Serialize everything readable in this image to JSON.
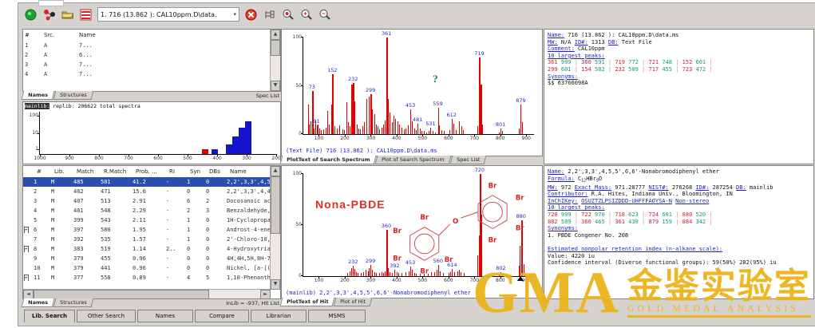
{
  "toolbar": {
    "icons": [
      "green-go-icon",
      "molecule-icon",
      "open-folder-icon",
      "structures-icon"
    ],
    "spectrum_selector": "1. 716 (13.862 ): CAL10ppm.D\\data.",
    "right_icons": [
      "delete-spectrum-icon",
      "tree-view-icon",
      "library-search-icon",
      "zoom-in-icon",
      "zoom-out-icon"
    ]
  },
  "spec_list": {
    "columns": [
      "#",
      "Src.",
      "Name"
    ],
    "rows": [
      [
        "1",
        "A",
        "7..."
      ],
      [
        "2",
        "A",
        "6..."
      ],
      [
        "3",
        "A",
        "7..."
      ],
      [
        "4",
        "A",
        "7..."
      ]
    ],
    "tabs": [
      "Names",
      "Structures"
    ],
    "corner_label": "Spec List"
  },
  "histogram": {
    "title_hl": "mainlib:",
    "title_rest": " replib:  206622 total spectra",
    "yticks": [
      "100",
      "10",
      "1"
    ],
    "xticks": [
      1000,
      900,
      800,
      700,
      600,
      500,
      400,
      300,
      200
    ],
    "xmin": 1000,
    "xmax": 200,
    "bars": [
      {
        "x": 440,
        "h": 12,
        "c": "#e00000"
      },
      {
        "x": 408,
        "h": 11,
        "c": "#1414cc"
      },
      {
        "x": 360,
        "h": 22,
        "c": "#1414cc"
      },
      {
        "x": 338,
        "h": 42,
        "c": "#1414cc"
      },
      {
        "x": 316,
        "h": 63,
        "c": "#1414cc"
      },
      {
        "x": 294,
        "h": 78,
        "c": "#1414cc"
      }
    ]
  },
  "search_spectrum": {
    "xmin": 40,
    "xmax": 930,
    "xticks": [
      100,
      200,
      300,
      400,
      500,
      600,
      700,
      800,
      900
    ],
    "yticks": [
      0,
      50,
      100
    ],
    "query_mark": "?",
    "peaks": [
      [
        59,
        31
      ],
      [
        63,
        10
      ],
      [
        69,
        13
      ],
      [
        73,
        45,
        1
      ],
      [
        77,
        8
      ],
      [
        81,
        6
      ],
      [
        85,
        14
      ],
      [
        91,
        9,
        1
      ],
      [
        95,
        10
      ],
      [
        103,
        6
      ],
      [
        109,
        4
      ],
      [
        117,
        5
      ],
      [
        127,
        7
      ],
      [
        133,
        24
      ],
      [
        140,
        10
      ],
      [
        147,
        31
      ],
      [
        152,
        62,
        1
      ],
      [
        155,
        21
      ],
      [
        160,
        8
      ],
      [
        170,
        6
      ],
      [
        178,
        9
      ],
      [
        191,
        5
      ],
      [
        198,
        4
      ],
      [
        207,
        33
      ],
      [
        213,
        12
      ],
      [
        219,
        8
      ],
      [
        226,
        51
      ],
      [
        232,
        53,
        1
      ],
      [
        238,
        34
      ],
      [
        245,
        10
      ],
      [
        253,
        6
      ],
      [
        260,
        5
      ],
      [
        268,
        8
      ],
      [
        275,
        12
      ],
      [
        283,
        36
      ],
      [
        291,
        39
      ],
      [
        299,
        41,
        1
      ],
      [
        305,
        26
      ],
      [
        313,
        21
      ],
      [
        320,
        10
      ],
      [
        327,
        8
      ],
      [
        334,
        5
      ],
      [
        341,
        7
      ],
      [
        348,
        10
      ],
      [
        355,
        14
      ],
      [
        361,
        100,
        1
      ],
      [
        367,
        36
      ],
      [
        373,
        22
      ],
      [
        381,
        12
      ],
      [
        389,
        19
      ],
      [
        395,
        16
      ],
      [
        403,
        13
      ],
      [
        411,
        10
      ],
      [
        419,
        7
      ],
      [
        427,
        5
      ],
      [
        435,
        6
      ],
      [
        443,
        9
      ],
      [
        453,
        26,
        1
      ],
      [
        459,
        13
      ],
      [
        467,
        6
      ],
      [
        475,
        4
      ],
      [
        481,
        11,
        1
      ],
      [
        489,
        6
      ],
      [
        497,
        3
      ],
      [
        505,
        3
      ],
      [
        515,
        2
      ],
      [
        523,
        3
      ],
      [
        531,
        7,
        1
      ],
      [
        539,
        3
      ],
      [
        547,
        2
      ],
      [
        559,
        27,
        1
      ],
      [
        565,
        9
      ],
      [
        573,
        4
      ],
      [
        583,
        3
      ],
      [
        605,
        4
      ],
      [
        612,
        16,
        1
      ],
      [
        618,
        11
      ],
      [
        627,
        4
      ],
      [
        641,
        13
      ],
      [
        649,
        8
      ],
      [
        657,
        4
      ],
      [
        712,
        8
      ],
      [
        719,
        79,
        1
      ],
      [
        723,
        51
      ],
      [
        731,
        10
      ],
      [
        793,
        2
      ],
      [
        801,
        6,
        1
      ],
      [
        807,
        3
      ],
      [
        871,
        6
      ],
      [
        879,
        31,
        1
      ],
      [
        885,
        12
      ]
    ],
    "caption": "(Text File) 716 (13.862 ): CAL10ppm.D\\data.ms",
    "tabs": [
      "PlotText of Search Spectrum",
      "Plot of Search Spectrum",
      "Spec List"
    ]
  },
  "search_info": {
    "lines_top": [
      [
        [
          "lk",
          "Name:"
        ],
        [
          "tx",
          " 716 (13.862 ): CAL10ppm.D\\data.ms"
        ]
      ],
      [
        [
          "lk",
          "MW:"
        ],
        [
          "tx",
          " N/A "
        ],
        [
          "lk",
          "ID#:"
        ],
        [
          "tx",
          " 1313 "
        ],
        [
          "lk",
          "DB:"
        ],
        [
          "tx",
          " Text File"
        ]
      ],
      [
        [
          "lk",
          "Comment:"
        ],
        [
          "tx",
          " CAL10ppm"
        ]
      ],
      [
        [
          "lk",
          "10 largest peaks:"
        ]
      ]
    ],
    "largest_peaks": [
      [
        "361",
        "999"
      ],
      [
        "360",
        "591"
      ],
      [
        "719",
        "772"
      ],
      [
        "721",
        "748"
      ],
      [
        "152",
        "601"
      ],
      [
        "299",
        "601"
      ],
      [
        "154",
        "582"
      ],
      [
        "232",
        "509"
      ],
      [
        "717",
        "455"
      ],
      [
        "723",
        "472"
      ]
    ],
    "lines_bottom": [
      [
        [
          "lk",
          "Synonyms:"
        ]
      ],
      [
        [
          "tx",
          "$$ 63766098A"
        ]
      ]
    ]
  },
  "hit_list": {
    "columns": [
      "#",
      "Lib.",
      "Match",
      "R.Match",
      "Prob. ...",
      "RI",
      "Syn",
      "DBs",
      "Name"
    ],
    "rows": [
      {
        "num": "1",
        "lib": "M",
        "match": "485",
        "rmatch": "501",
        "prob": "41.2",
        "ri": "-",
        "syn": "1",
        "dbs": "0",
        "name": "2,2',3,3',4,5,5',6,6'-N",
        "sel": true,
        "exp": false
      },
      {
        "num": "2",
        "lib": "M",
        "match": "462",
        "rmatch": "471",
        "prob": "15.0",
        "ri": "-",
        "syn": "0",
        "dbs": "0",
        "name": "2,2',3,3',4,4',5,5',6-N",
        "exp": false
      },
      {
        "num": "3",
        "lib": "M",
        "match": "407",
        "rmatch": "513",
        "prob": "2.91",
        "ri": "-",
        "syn": "6",
        "dbs": "2",
        "name": "Docosanoic acid, 1,2,3-",
        "exp": false
      },
      {
        "num": "4",
        "lib": "M",
        "match": "401",
        "rmatch": "548",
        "prob": "2.29",
        "ri": "-",
        "syn": "2",
        "dbs": "3",
        "name": "Benzaldehyde, 4-hydroxy",
        "exp": false
      },
      {
        "num": "5",
        "lib": "M",
        "match": "399",
        "rmatch": "543",
        "prob": "2.11",
        "ri": "-",
        "syn": "1",
        "dbs": "0",
        "name": "1H-Cyclopropa[3,4]benz",
        "exp": false
      },
      {
        "num": "6",
        "lib": "M",
        "match": "397",
        "rmatch": "580",
        "prob": "1.95",
        "ri": "-",
        "syn": "1",
        "dbs": "0",
        "name": "Androst-4-ene-3,17-dion",
        "exp": true
      },
      {
        "num": "7",
        "lib": "M",
        "match": "392",
        "rmatch": "535",
        "prob": "1.57",
        "ri": "-",
        "syn": "1",
        "dbs": "0",
        "name": "2'-Chloro-10,11-dihydro",
        "exp": false
      },
      {
        "num": "8",
        "lib": "M",
        "match": "383",
        "rmatch": "519",
        "prob": "1.14",
        "ri": "2..",
        "syn": "0",
        "dbs": "0",
        "name": "4-Hydroxytriazolam, ac",
        "exp": true
      },
      {
        "num": "9",
        "lib": "M",
        "match": "379",
        "rmatch": "455",
        "prob": "0.96",
        "ri": "-",
        "syn": "0",
        "dbs": "0",
        "name": "4H,4H,5H,8H-7a,8a-Diaza",
        "exp": false
      },
      {
        "num": "10",
        "lib": "M",
        "match": "379",
        "rmatch": "441",
        "prob": "0.96",
        "ri": "-",
        "syn": "0",
        "dbs": "0",
        "name": "Nickel, [a-[(1,2-η:3,",
        "exp": false
      },
      {
        "num": "11",
        "lib": "M",
        "match": "377",
        "rmatch": "558",
        "prob": "0.89",
        "ri": "-",
        "syn": "4",
        "dbs": "5",
        "name": "1,10-Phenanthroline, 2,",
        "exp": true
      }
    ],
    "tabs": [
      "Names",
      "Structures"
    ],
    "corner_label": "InLib = -937, Hit List"
  },
  "hit_spectrum": {
    "xmin": 40,
    "xmax": 930,
    "xticks": [
      100,
      200,
      300,
      400,
      500,
      600,
      700,
      800,
      900
    ],
    "yticks": [
      0,
      50,
      100
    ],
    "annotation": "Nona-PBDE",
    "marker_x": 877,
    "structure": {
      "o_label": "O",
      "br_label": "Br"
    },
    "peaks": [
      [
        210,
        3
      ],
      [
        220,
        5
      ],
      [
        226,
        8
      ],
      [
        232,
        10,
        1
      ],
      [
        238,
        7
      ],
      [
        244,
        4
      ],
      [
        250,
        3
      ],
      [
        262,
        3
      ],
      [
        270,
        4
      ],
      [
        280,
        6
      ],
      [
        288,
        5
      ],
      [
        293,
        8
      ],
      [
        299,
        11,
        1
      ],
      [
        306,
        6
      ],
      [
        313,
        4
      ],
      [
        320,
        3
      ],
      [
        334,
        3
      ],
      [
        341,
        4
      ],
      [
        348,
        3
      ],
      [
        355,
        5
      ],
      [
        360,
        45,
        1
      ],
      [
        366,
        8
      ],
      [
        373,
        4
      ],
      [
        381,
        3
      ],
      [
        392,
        6,
        1
      ],
      [
        399,
        4
      ],
      [
        406,
        3
      ],
      [
        420,
        3
      ],
      [
        433,
        4
      ],
      [
        446,
        5
      ],
      [
        453,
        9,
        1
      ],
      [
        460,
        6
      ],
      [
        467,
        3
      ],
      [
        475,
        2
      ],
      [
        490,
        2
      ],
      [
        505,
        2
      ],
      [
        520,
        2
      ],
      [
        533,
        4
      ],
      [
        546,
        4
      ],
      [
        553,
        6
      ],
      [
        560,
        11,
        1
      ],
      [
        567,
        5
      ],
      [
        580,
        3
      ],
      [
        600,
        3
      ],
      [
        607,
        4
      ],
      [
        614,
        7,
        1
      ],
      [
        621,
        4
      ],
      [
        634,
        5
      ],
      [
        641,
        6
      ],
      [
        648,
        4
      ],
      [
        660,
        3
      ],
      [
        712,
        20
      ],
      [
        716,
        40
      ],
      [
        720,
        100,
        1
      ],
      [
        724,
        60
      ],
      [
        728,
        25
      ],
      [
        795,
        2
      ],
      [
        802,
        4,
        1
      ],
      [
        809,
        2
      ],
      [
        870,
        10
      ],
      [
        875,
        30
      ],
      [
        880,
        55,
        1
      ],
      [
        884,
        35
      ],
      [
        889,
        12
      ]
    ],
    "caption": "(mainlib) 2,2',3,3',4,5,5',6,6'-Nonabromodiphenyl ether",
    "tabs": [
      "PlotText of Hit",
      "Plot of Hit"
    ]
  },
  "hit_info": {
    "lines_top": [
      [
        [
          "lk",
          "Name:"
        ],
        [
          "tx",
          " 2,2',3,3',4,5,5',6,6'-Nonabromodiphenyl ether"
        ]
      ],
      [
        [
          "lk",
          "Formula:"
        ],
        [
          "tx",
          " C"
        ],
        [
          "sub",
          "12"
        ],
        [
          "tx",
          "HBr"
        ],
        [
          "sub",
          "9"
        ],
        [
          "tx",
          "O"
        ]
      ],
      [
        [
          "lk",
          "MW:"
        ],
        [
          "tx",
          " 972 "
        ],
        [
          "lk",
          "Exact Mass:"
        ],
        [
          "tx",
          " 971.28777 "
        ],
        [
          "lk",
          "NIST#:"
        ],
        [
          "tx",
          " 276268 "
        ],
        [
          "lk",
          "ID#:"
        ],
        [
          "tx",
          " 287254 "
        ],
        [
          "lk",
          "DB:"
        ],
        [
          "tx",
          " mainlib"
        ]
      ],
      [
        [
          "lk",
          "Contributor:"
        ],
        [
          "tx",
          " R.A. Hites, Indiana Univ., Bloomington, IN"
        ]
      ],
      [
        [
          "lk",
          "InChIKey:"
        ],
        [
          "tx",
          " "
        ],
        [
          "lk",
          "OSUZTZLPSIZDDD-UHFFFAOYSA-N"
        ],
        [
          "tx",
          "   "
        ],
        [
          "lk",
          "Non-stereo"
        ]
      ],
      [
        [
          "lk",
          "10 largest peaks:"
        ]
      ]
    ],
    "largest_peaks": [
      [
        "720",
        "999"
      ],
      [
        "722",
        "970"
      ],
      [
        "718",
        "623"
      ],
      [
        "724",
        "601"
      ],
      [
        "880",
        "520"
      ],
      [
        "882",
        "509"
      ],
      [
        "360",
        "465"
      ],
      [
        "361",
        "430"
      ],
      [
        "879",
        "159"
      ],
      [
        "884",
        "342"
      ]
    ],
    "lines_bottom": [
      [
        [
          "lk",
          "Synonyms:"
        ]
      ],
      [
        [
          "tx",
          "1. PBDE Congener No. 208"
        ]
      ],
      [
        [
          "tx",
          ""
        ]
      ],
      [
        [
          "lk",
          "Estimated nonpolar retention index (n-alkane scale):"
        ]
      ],
      [
        [
          "tx",
          "Value: 4220 iu"
        ]
      ],
      [
        [
          "tx",
          "Confidence interval (Diverse functional groups): 59(50%) 282(95%) iu"
        ]
      ]
    ]
  },
  "bottom_tabs": {
    "items": [
      "Lib. Search",
      "Other Search",
      "Names",
      "Compare",
      "Librarian",
      "MSMS"
    ],
    "active": 0
  },
  "watermark": {
    "gma": "GMA",
    "cn": "金鉴实验室",
    "sub": "GOLD MEDAL ANALYSIS"
  },
  "colors": {
    "peak": "#e00000",
    "label": "#2a2ac0",
    "selected_row": "#2b4fae",
    "watermark": "#ecb41c",
    "bar_blue": "#1414cc",
    "bar_red": "#e00000"
  }
}
